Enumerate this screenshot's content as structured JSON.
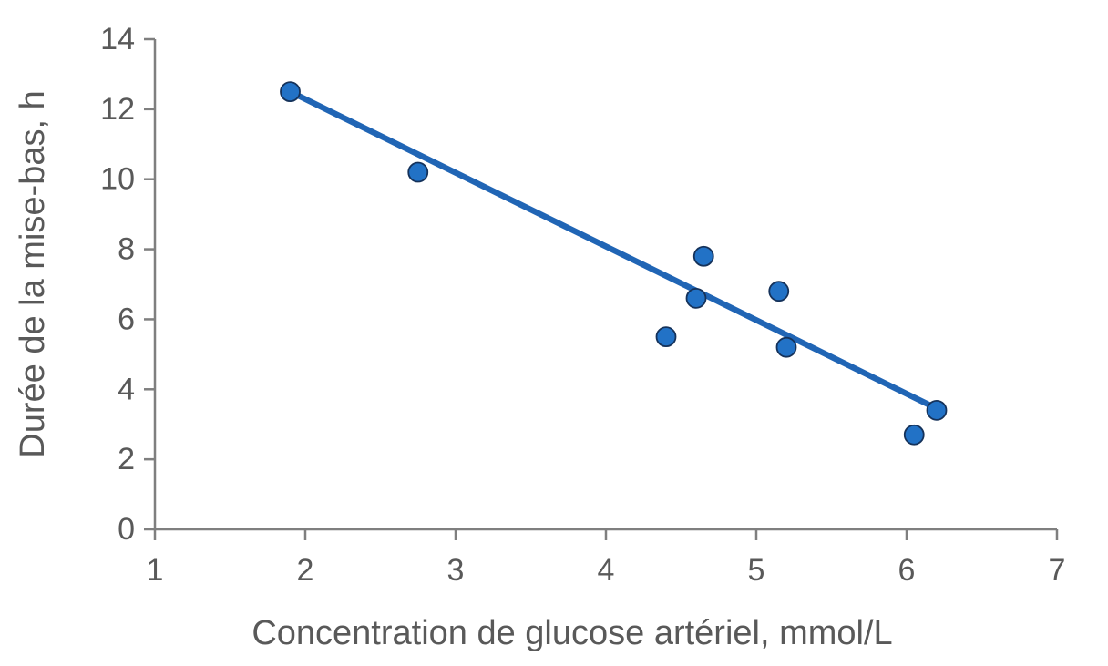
{
  "chart_data": {
    "type": "scatter",
    "title": "",
    "xlabel": "Concentration de glucose artériel, mmol/L",
    "ylabel": "Durée de la mise-bas, h",
    "xlim": [
      1,
      7
    ],
    "ylim": [
      0,
      14
    ],
    "xticks": [
      1,
      2,
      3,
      4,
      5,
      6,
      7
    ],
    "yticks": [
      0,
      2,
      4,
      6,
      8,
      10,
      12,
      14
    ],
    "grid": false,
    "legend": false,
    "series": [
      {
        "name": "observations",
        "type": "scatter",
        "points": [
          [
            1.9,
            12.5
          ],
          [
            2.75,
            10.2
          ],
          [
            4.4,
            5.5
          ],
          [
            4.6,
            6.6
          ],
          [
            4.65,
            7.8
          ],
          [
            5.15,
            6.8
          ],
          [
            5.2,
            5.2
          ],
          [
            6.05,
            2.7
          ],
          [
            6.2,
            3.4
          ]
        ]
      },
      {
        "name": "trendline",
        "type": "line",
        "points": [
          [
            1.9,
            12.5
          ],
          [
            6.2,
            3.45
          ]
        ]
      }
    ],
    "colors": {
      "marker_fill": "#2272C6",
      "marker_stroke": "#15325A",
      "trend_line": "#2065B5",
      "axis": "#7F7F7F",
      "text": "#595959"
    }
  }
}
